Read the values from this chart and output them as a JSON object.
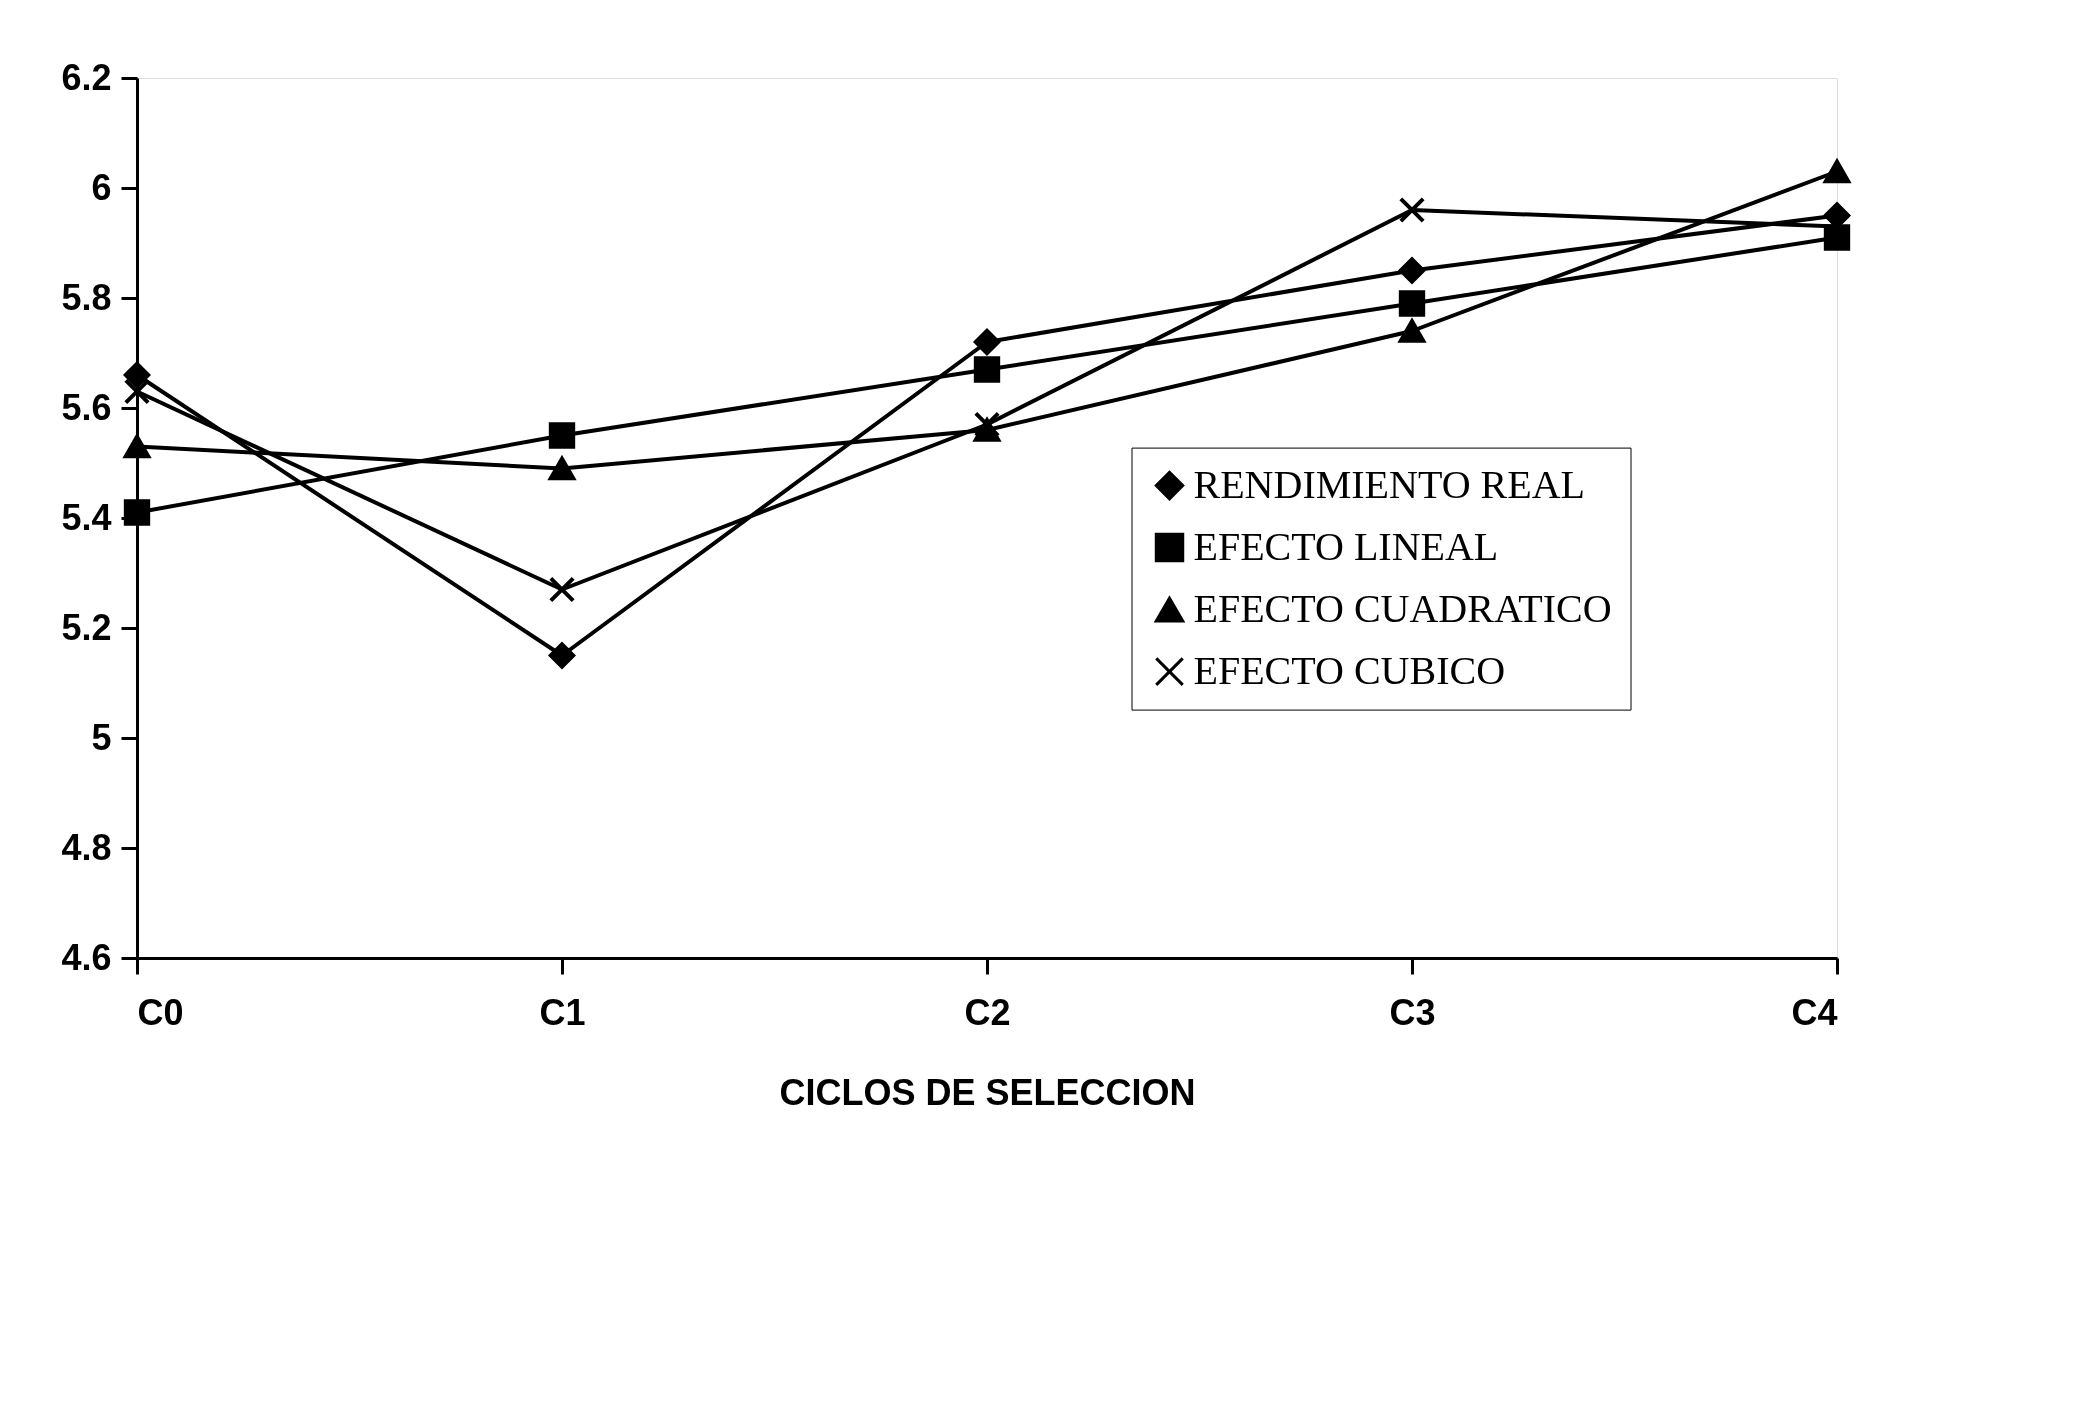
{
  "chart_data": {
    "type": "line",
    "xlabel": "CICLOS DE SELECCION",
    "categories": [
      "C0",
      "C1",
      "C2",
      "C3",
      "C4"
    ],
    "ylim": [
      4.6,
      6.2
    ],
    "yticks": [
      4.6,
      4.8,
      5,
      5.2,
      5.4,
      5.6,
      5.8,
      6,
      6.2
    ],
    "grid": false,
    "legend": "right",
    "series": [
      {
        "name": "RENDIMIENTO REAL",
        "color": "#000000",
        "marker": "diamond",
        "values": [
          5.66,
          5.15,
          5.72,
          5.85,
          5.95
        ]
      },
      {
        "name": "EFECTO LINEAL",
        "color": "#000000",
        "marker": "square",
        "values": [
          5.41,
          5.55,
          5.67,
          5.79,
          5.91
        ]
      },
      {
        "name": "EFECTO CUADRATICO",
        "color": "#000000",
        "marker": "triangle",
        "values": [
          5.53,
          5.49,
          5.56,
          5.74,
          6.03
        ]
      },
      {
        "name": "EFECTO CUBICO",
        "color": "#000000",
        "marker": "cross",
        "values": [
          5.63,
          5.27,
          5.57,
          5.96,
          5.93
        ]
      }
    ]
  }
}
